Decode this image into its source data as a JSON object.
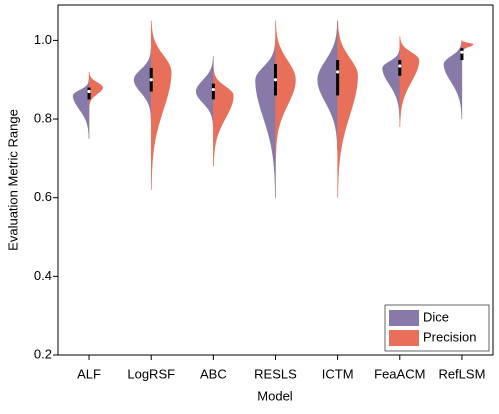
{
  "chart_data": {
    "type": "split-violin",
    "x_label": "Model",
    "y_label": "Evaluation Metric Range",
    "categories": [
      "ALF",
      "LogRSF",
      "ABC",
      "RESLS",
      "ICTM",
      "FeaACM",
      "RefLSM"
    ],
    "series": [
      {
        "name": "Dice",
        "color": "#8779a8",
        "min": [
          0.75,
          0.8,
          0.78,
          0.6,
          0.72,
          0.8,
          0.8
        ],
        "peak": [
          0.86,
          0.9,
          0.87,
          0.9,
          0.9,
          0.93,
          0.94
        ],
        "max": [
          0.9,
          0.98,
          0.96,
          1.0,
          1.05,
          0.98,
          1.0
        ]
      },
      {
        "name": "Precision",
        "color": "#e8705a",
        "min": [
          0.83,
          0.62,
          0.68,
          0.7,
          0.6,
          0.78,
          0.97
        ],
        "peak": [
          0.88,
          0.92,
          0.86,
          0.9,
          0.91,
          0.95,
          0.99
        ],
        "max": [
          0.92,
          1.05,
          0.93,
          1.05,
          1.05,
          1.01,
          1.0
        ]
      }
    ],
    "q1": [
      0.85,
      0.87,
      0.85,
      0.86,
      0.86,
      0.91,
      0.95
    ],
    "median": [
      0.87,
      0.9,
      0.875,
      0.9,
      0.92,
      0.935,
      0.97
    ],
    "q3": [
      0.88,
      0.93,
      0.89,
      0.94,
      0.95,
      0.95,
      0.98
    ],
    "ylim": [
      0.2,
      1.09
    ],
    "yticks": [
      0.2,
      0.4,
      0.6,
      0.8,
      {
        "value": 1,
        "label": "1.0"
      }
    ],
    "legend": "lower right"
  }
}
